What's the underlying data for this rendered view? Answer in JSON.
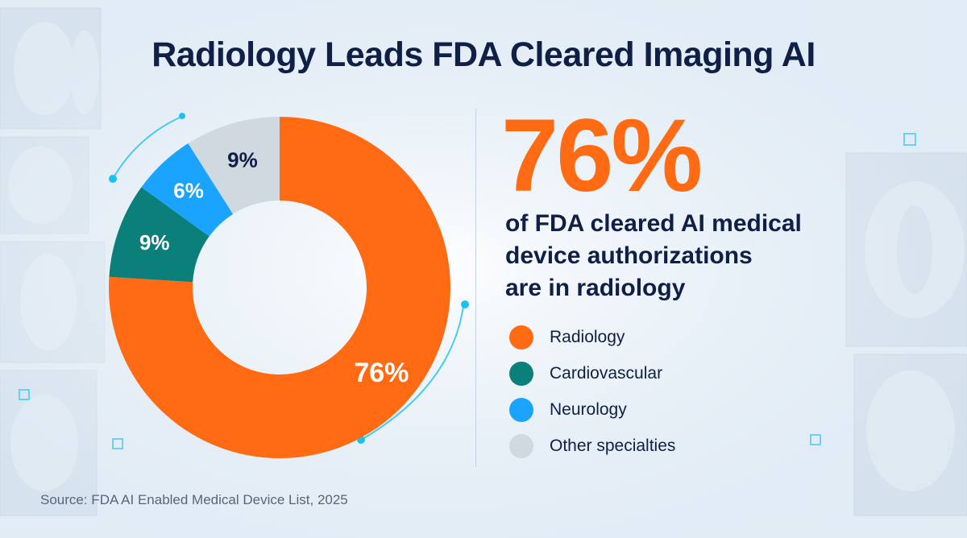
{
  "title": "Radiology Leads FDA Cleared Imaging AI",
  "highlight": {
    "value": "76%",
    "description": "of FDA cleared AI medical\ndevice authorizations\nare in radiology"
  },
  "source": "Source: FDA AI Enabled Medical Device List, 2025",
  "colors": {
    "background": "#eef4fa",
    "title_text": "#0f1f45",
    "accent_orange": "#ff6a13",
    "teal": "#0b7f7a",
    "blue": "#1aa3ff",
    "gray": "#d0d8e0",
    "glow_cyan": "#19c2f0"
  },
  "chart_data": {
    "type": "pie",
    "style": "donut",
    "categories": [
      "Radiology",
      "Cardiovascular",
      "Neurology",
      "Other specialties"
    ],
    "values": [
      76,
      9,
      6,
      9
    ],
    "data_labels": [
      "76%",
      "9%",
      "6%",
      "9%"
    ],
    "colors": [
      "#ff6a13",
      "#0b7f7a",
      "#1aa3ff",
      "#d0d8e0"
    ],
    "label_colors": [
      "#ffffff",
      "#ffffff",
      "#ffffff",
      "#0f1f45"
    ],
    "legend_position": "right"
  }
}
